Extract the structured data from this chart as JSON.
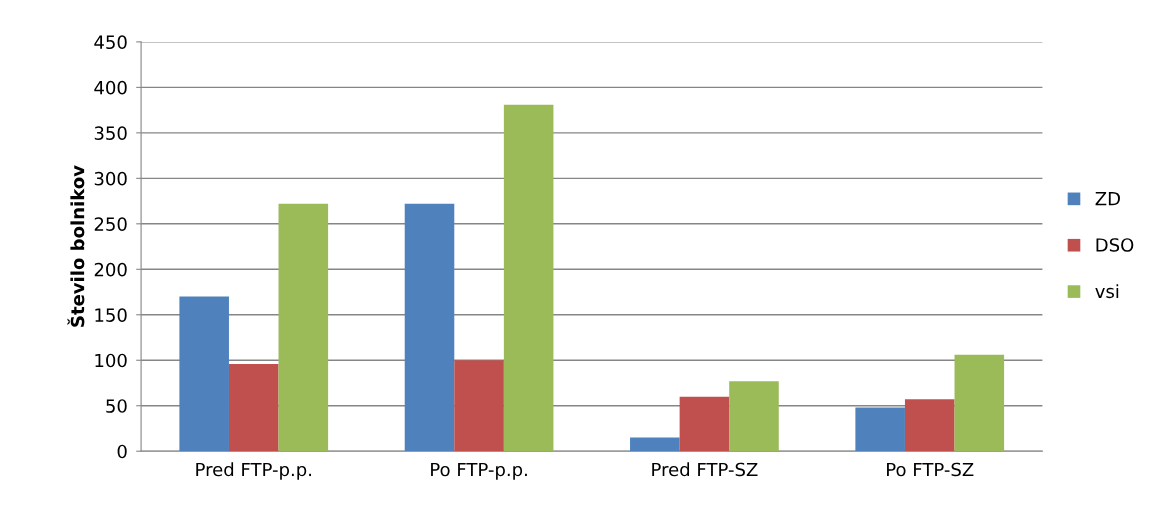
{
  "chart_data": {
    "type": "bar",
    "ylabel": "Število bolnikov",
    "categories": [
      "Pred FTP-p.p.",
      "Po FTP-p.p.",
      "Pred FTP-SZ",
      "Po FTP-SZ"
    ],
    "series": [
      {
        "name": "ZD",
        "color": "#4f81bd",
        "values": [
          170,
          272,
          15,
          48
        ]
      },
      {
        "name": "DSO",
        "color": "#c0504d",
        "values": [
          96,
          100,
          60,
          57
        ]
      },
      {
        "name": "vsi",
        "color": "#9bbb59",
        "values": [
          272,
          381,
          77,
          106
        ]
      }
    ],
    "ylim": [
      0,
      450
    ],
    "yticks": [
      0,
      50,
      100,
      150,
      200,
      250,
      300,
      350,
      400,
      450
    ],
    "grid": "y",
    "legend": "right"
  }
}
